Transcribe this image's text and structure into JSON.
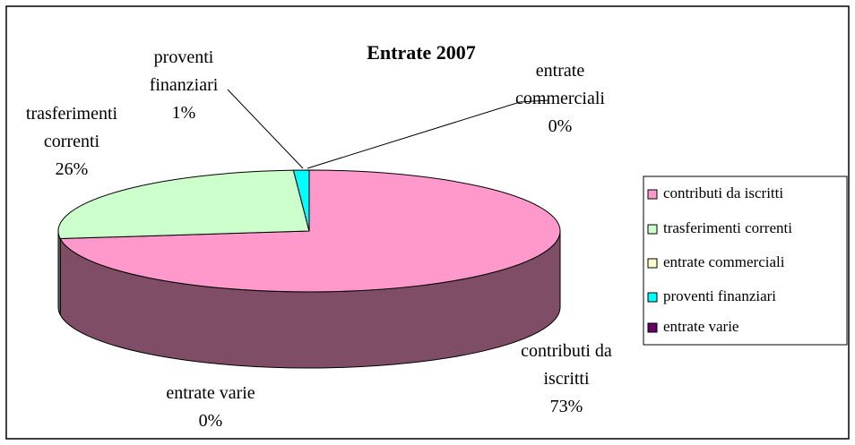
{
  "chart_data": {
    "type": "pie",
    "title": "Entrate 2007",
    "categories": [
      "contributi da iscritti",
      "trasferimenti correnti",
      "entrate commerciali",
      "proventi finanziari",
      "entrate varie"
    ],
    "values": [
      73,
      26,
      0,
      1,
      0
    ],
    "value_labels": [
      "73%",
      "26%",
      "0%",
      "1%",
      "0%"
    ],
    "colors": [
      "#ff99cc",
      "#ccffcc",
      "#ffffcc",
      "#00ffff",
      "#660066"
    ],
    "legend": "right"
  }
}
